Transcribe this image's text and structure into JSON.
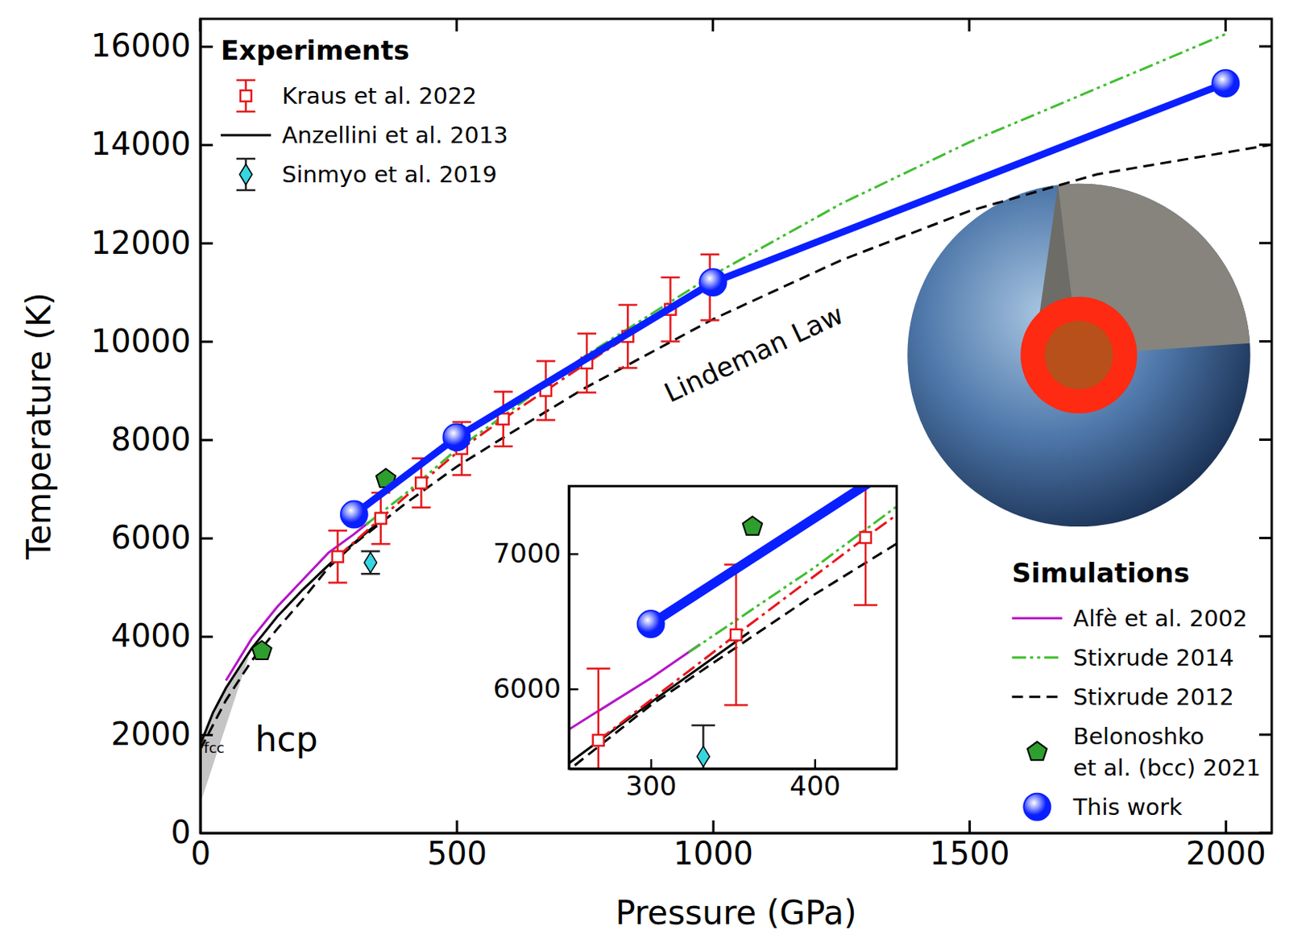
{
  "chart_data": {
    "type": "line",
    "x_label": "Pressure (GPa)",
    "y_label": "Temperature (K)",
    "xlim": [
      0,
      2090
    ],
    "ylim": [
      0,
      16560
    ],
    "xticks": [
      0,
      500,
      1000,
      1500,
      2000
    ],
    "yticks": [
      0,
      2000,
      4000,
      6000,
      8000,
      10000,
      12000,
      14000,
      16000
    ],
    "series_groups": [
      {
        "title": "Experiments",
        "legend": "upper left",
        "series": [
          {
            "name": "Kraus et al. 2022",
            "type": "line",
            "color": "#e8161b",
            "marker": "square",
            "line_style": "dashdot",
            "x": [
              268,
              352,
              431,
              510,
              591,
              674,
              754,
              834,
              917,
              994
            ],
            "values": [
              5620,
              6400,
              7120,
              7820,
              8420,
              9000,
              9560,
              10100,
              10650,
              11100
            ],
            "error": [
              530,
              520,
              500,
              540,
              555,
              600,
              600,
              640,
              650,
              670
            ]
          },
          {
            "name": "Anzellini et al. 2013",
            "type": "line",
            "color": "#000000",
            "line_style": "solid",
            "x": [
              0,
              25,
              50,
              100,
              150,
              200,
              250,
              300,
              360
            ],
            "values": [
              1800,
              2450,
              2950,
              3750,
              4400,
              4950,
              5450,
              5900,
              6420
            ]
          },
          {
            "name": "Sinmyo et al. 2019",
            "type": "scatter",
            "color": "#35d6e0",
            "marker": "diamond",
            "x": [
              332
            ],
            "values": [
              5500
            ],
            "error": [
              230
            ]
          }
        ]
      },
      {
        "title": "Simulations",
        "legend": "lower right",
        "series": [
          {
            "name": "Alfè et al. 2002",
            "type": "line",
            "color": "#b515c8",
            "line_style": "solid",
            "x": [
              50,
              100,
              150,
              200,
              250,
              300,
              330
            ],
            "values": [
              3100,
              3950,
              4600,
              5150,
              5700,
              6080,
              6330
            ]
          },
          {
            "name": "Stixrude 2014",
            "type": "line",
            "color": "#3fbf2f",
            "line_style": "dashdotdot",
            "x": [
              323,
              400,
              500,
              600,
              750,
              1000,
              1250,
              1500,
              1750,
              2000
            ],
            "values": [
              6270,
              6900,
              7800,
              8550,
              9700,
              11350,
              12800,
              14050,
              15150,
              16250
            ]
          },
          {
            "name": "Stixrude 2012",
            "type": "line",
            "color": "#000000",
            "line_style": "dashed",
            "x": [
              0,
              50,
              100,
              150,
              200,
              250,
              300,
              400,
              500,
              600,
              750,
              1000,
              1250,
              1500,
              1750,
              2090
            ],
            "values": [
              1700,
              2700,
              3500,
              4150,
              4750,
              5400,
              5880,
              6700,
              7450,
              8100,
              9050,
              10450,
              11650,
              12650,
              13400,
              14000
            ]
          },
          {
            "name": "Belonoshko et al. (bcc) 2021",
            "type": "scatter",
            "color": "#2e9e2e",
            "marker": "pentagon",
            "x": [
              120,
              362
            ],
            "values": [
              3700,
              7200
            ]
          },
          {
            "name": "This work",
            "type": "line",
            "color": "#0a1fff",
            "marker": "circle",
            "line_style": "solid",
            "x": [
              300,
              500,
              1000,
              2000
            ],
            "values": [
              6480,
              8050,
              11200,
              15250
            ]
          }
        ]
      }
    ],
    "fcc_region": {
      "x": [
        0,
        0,
        50,
        95
      ],
      "values": [
        600,
        1800,
        2950,
        3600
      ]
    },
    "annotations": [
      {
        "text": "Lindeman Law",
        "x": 1081,
        "y": 9716
      },
      {
        "text": "hcp",
        "x": 168,
        "y": 1850
      },
      {
        "text": "fcc",
        "x": 27,
        "y": 1710
      }
    ],
    "inset": {
      "xlim": [
        250,
        450
      ],
      "ylim": [
        5410,
        7500
      ],
      "xticks": [
        300,
        400
      ],
      "yticks": [
        6000,
        7000
      ]
    }
  }
}
